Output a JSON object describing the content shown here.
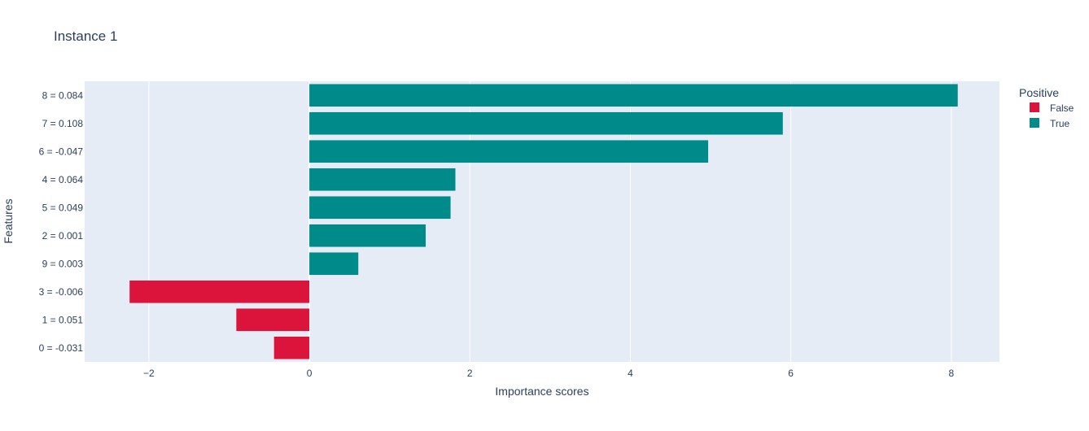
{
  "chart_data": {
    "type": "bar",
    "orientation": "horizontal",
    "title": "Instance 1",
    "xlabel": "Importance scores",
    "ylabel": "Features",
    "xlim": [
      -2.8,
      8.6
    ],
    "x_ticks": [
      -2,
      0,
      2,
      4,
      6,
      8
    ],
    "x_tick_labels": [
      "−2",
      "0",
      "2",
      "4",
      "6",
      "8"
    ],
    "grid": true,
    "legend_position": "top-right",
    "legend_title": "Positive",
    "colors": {
      "False": "#dc143c",
      "True": "#008b8b",
      "plot_bg": "#e5ecf6",
      "text": "#2a3f5f"
    },
    "categories": [
      "8 = 0.084",
      "7 = 0.108",
      "6 = -0.047",
      "4 = 0.064",
      "5 = 0.049",
      "2 = 0.001",
      "9 = 0.003",
      "3 = -0.006",
      "1 = 0.051",
      "0 = -0.031"
    ],
    "series": [
      {
        "name": "False",
        "values": [
          null,
          null,
          null,
          null,
          null,
          null,
          null,
          -2.24,
          -0.91,
          -0.44
        ]
      },
      {
        "name": "True",
        "values": [
          8.08,
          5.9,
          4.97,
          1.82,
          1.76,
          1.45,
          0.61,
          null,
          null,
          null
        ]
      }
    ]
  }
}
